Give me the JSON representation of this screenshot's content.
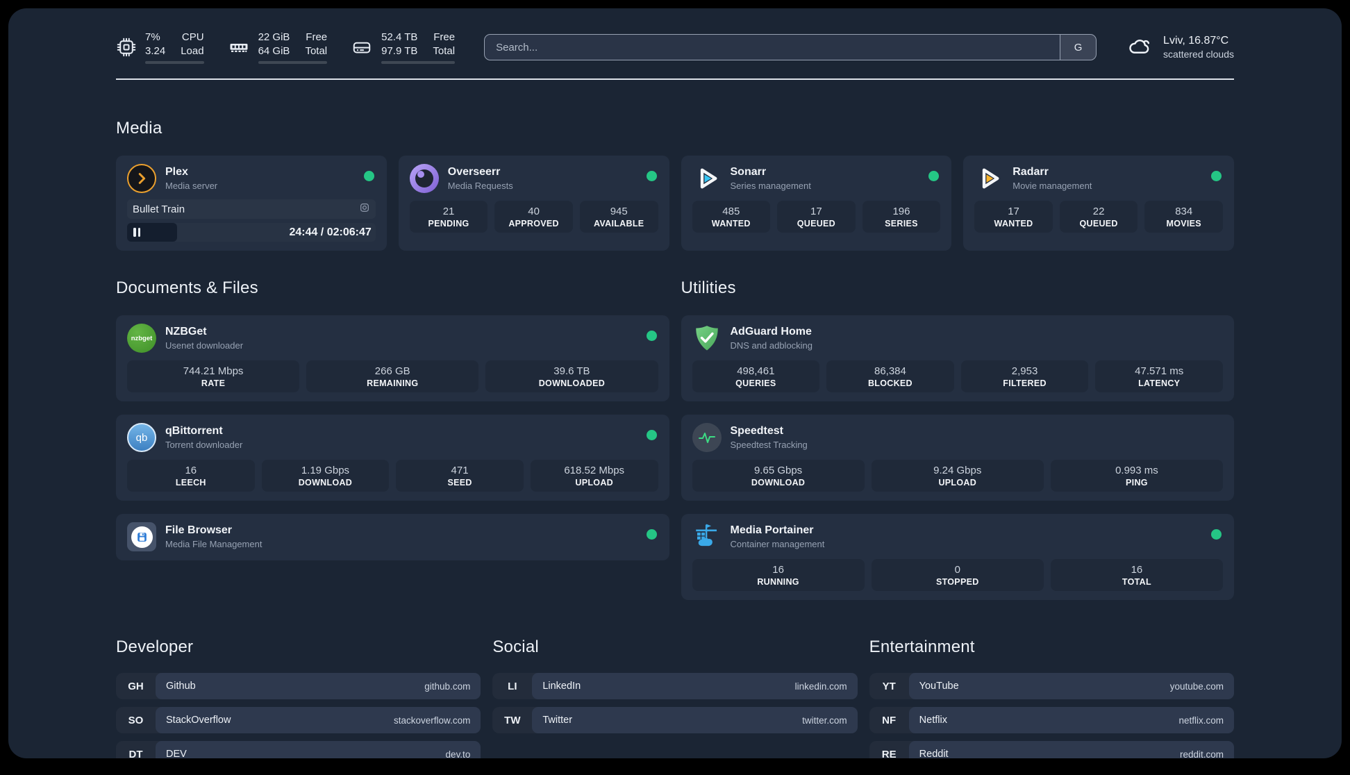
{
  "topbar": {
    "cpu": {
      "values": [
        "7%",
        "3.24"
      ],
      "labels": [
        "CPU",
        "Load"
      ],
      "progress_pct": 7
    },
    "ram": {
      "values": [
        "22 GiB",
        "64 GiB"
      ],
      "labels": [
        "Free",
        "Total"
      ],
      "progress_pct": 66
    },
    "disk": {
      "values": [
        "52.4 TB",
        "97.9 TB"
      ],
      "labels": [
        "Free",
        "Total"
      ],
      "progress_pct": 46
    },
    "search": {
      "placeholder": "Search...",
      "button_label": "G"
    },
    "weather": {
      "summary": "Lviv, 16.87°C",
      "condition": "scattered clouds"
    }
  },
  "colors": {
    "status_online": "#25c685",
    "accent_green": "#3ddc84"
  },
  "sections": {
    "media": {
      "title": "Media",
      "cards": [
        {
          "name": "Plex",
          "description": "Media server",
          "online": true,
          "now_playing": {
            "title": "Bullet Train",
            "time": "24:44 / 02:06:47",
            "state": "paused",
            "progress_pct": 20
          }
        },
        {
          "name": "Overseerr",
          "description": "Media Requests",
          "online": true,
          "stats": [
            {
              "value": "21",
              "label": "PENDING"
            },
            {
              "value": "40",
              "label": "APPROVED"
            },
            {
              "value": "945",
              "label": "AVAILABLE"
            }
          ]
        },
        {
          "name": "Sonarr",
          "description": "Series management",
          "online": true,
          "stats": [
            {
              "value": "485",
              "label": "WANTED"
            },
            {
              "value": "17",
              "label": "QUEUED"
            },
            {
              "value": "196",
              "label": "SERIES"
            }
          ]
        },
        {
          "name": "Radarr",
          "description": "Movie management",
          "online": true,
          "stats": [
            {
              "value": "17",
              "label": "WANTED"
            },
            {
              "value": "22",
              "label": "QUEUED"
            },
            {
              "value": "834",
              "label": "MOVIES"
            }
          ]
        }
      ]
    },
    "documents": {
      "title": "Documents & Files",
      "cards": [
        {
          "name": "NZBGet",
          "description": "Usenet downloader",
          "online": true,
          "stats": [
            {
              "value": "744.21 Mbps",
              "label": "RATE"
            },
            {
              "value": "266 GB",
              "label": "REMAINING"
            },
            {
              "value": "39.6 TB",
              "label": "DOWNLOADED"
            }
          ]
        },
        {
          "name": "qBittorrent",
          "description": "Torrent downloader",
          "online": true,
          "stats": [
            {
              "value": "16",
              "label": "LEECH"
            },
            {
              "value": "1.19 Gbps",
              "label": "DOWNLOAD"
            },
            {
              "value": "471",
              "label": "SEED"
            },
            {
              "value": "618.52 Mbps",
              "label": "UPLOAD"
            }
          ]
        },
        {
          "name": "File Browser",
          "description": "Media File Management",
          "online": true
        }
      ]
    },
    "utilities": {
      "title": "Utilities",
      "cards": [
        {
          "name": "AdGuard Home",
          "description": "DNS and adblocking",
          "online": false,
          "stats": [
            {
              "value": "498,461",
              "label": "QUERIES"
            },
            {
              "value": "86,384",
              "label": "BLOCKED"
            },
            {
              "value": "2,953",
              "label": "FILTERED"
            },
            {
              "value": "47.571 ms",
              "label": "LATENCY"
            }
          ]
        },
        {
          "name": "Speedtest",
          "description": "Speedtest Tracking",
          "online": false,
          "stats": [
            {
              "value": "9.65 Gbps",
              "label": "DOWNLOAD"
            },
            {
              "value": "9.24 Gbps",
              "label": "UPLOAD"
            },
            {
              "value": "0.993 ms",
              "label": "PING"
            }
          ]
        },
        {
          "name": "Media Portainer",
          "description": "Container management",
          "online": true,
          "stats": [
            {
              "value": "16",
              "label": "RUNNING"
            },
            {
              "value": "0",
              "label": "STOPPED"
            },
            {
              "value": "16",
              "label": "TOTAL"
            }
          ]
        }
      ]
    },
    "bookmarks": [
      {
        "title": "Developer",
        "items": [
          {
            "abbr": "GH",
            "name": "Github",
            "url": "github.com"
          },
          {
            "abbr": "SO",
            "name": "StackOverflow",
            "url": "stackoverflow.com"
          },
          {
            "abbr": "DT",
            "name": "DEV",
            "url": "dev.to"
          }
        ]
      },
      {
        "title": "Social",
        "items": [
          {
            "abbr": "LI",
            "name": "LinkedIn",
            "url": "linkedin.com"
          },
          {
            "abbr": "TW",
            "name": "Twitter",
            "url": "twitter.com"
          }
        ]
      },
      {
        "title": "Entertainment",
        "items": [
          {
            "abbr": "YT",
            "name": "YouTube",
            "url": "youtube.com"
          },
          {
            "abbr": "NF",
            "name": "Netflix",
            "url": "netflix.com"
          },
          {
            "abbr": "RE",
            "name": "Reddit",
            "url": "reddit.com"
          }
        ]
      }
    ],
    "nzbget_icon_text": "nzbget",
    "qb_icon_text": "qb"
  }
}
